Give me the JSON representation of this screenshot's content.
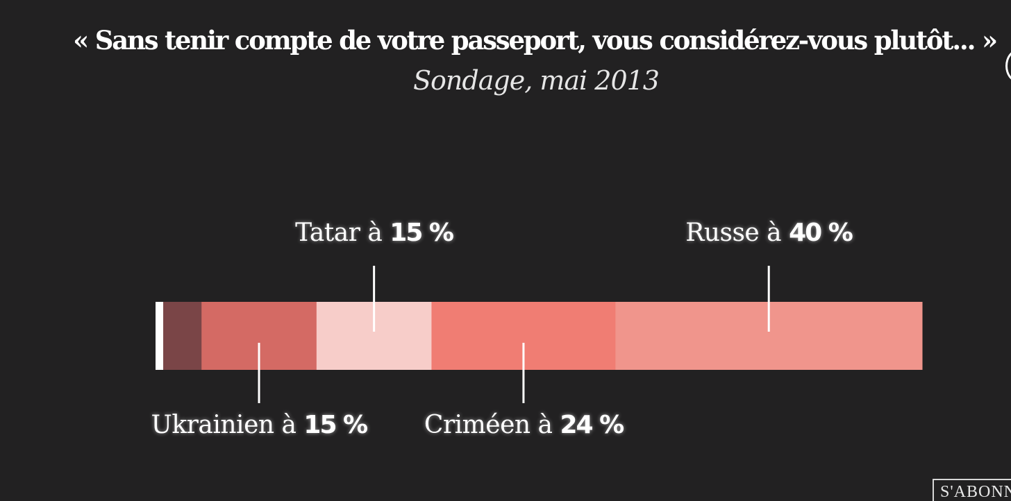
{
  "chart_data": {
    "type": "bar",
    "orientation": "horizontal-stacked",
    "title": "« Sans tenir compte de votre passeport, vous considérez-vous plutôt... »",
    "subtitle": "Sondage, mai 2013",
    "unit": "%",
    "total": 100,
    "series": [
      {
        "name": "",
        "value": 1,
        "color": "#ffffff",
        "labeled": false
      },
      {
        "name": "",
        "value": 5,
        "color": "#7a4547",
        "labeled": false
      },
      {
        "name": "Ukrainien",
        "value": 15,
        "color": "#d46a64",
        "labeled": true,
        "label_side": "below",
        "label_text": "Ukrainien à ",
        "value_text": "15 %"
      },
      {
        "name": "Tatar",
        "value": 15,
        "color": "#f7cdc9",
        "labeled": true,
        "label_side": "above",
        "label_text": "Tatar à ",
        "value_text": "15 %"
      },
      {
        "name": "Criméen",
        "value": 24,
        "color": "#f07d73",
        "labeled": true,
        "label_side": "below",
        "label_text": "Criméen à ",
        "value_text": "24 %"
      },
      {
        "name": "Russe",
        "value": 40,
        "color": "#f0958c",
        "labeled": true,
        "label_side": "above",
        "label_text": "Russe à ",
        "value_text": "40 %"
      }
    ]
  },
  "subscribe_button": {
    "label": "S'ABONNER"
  }
}
